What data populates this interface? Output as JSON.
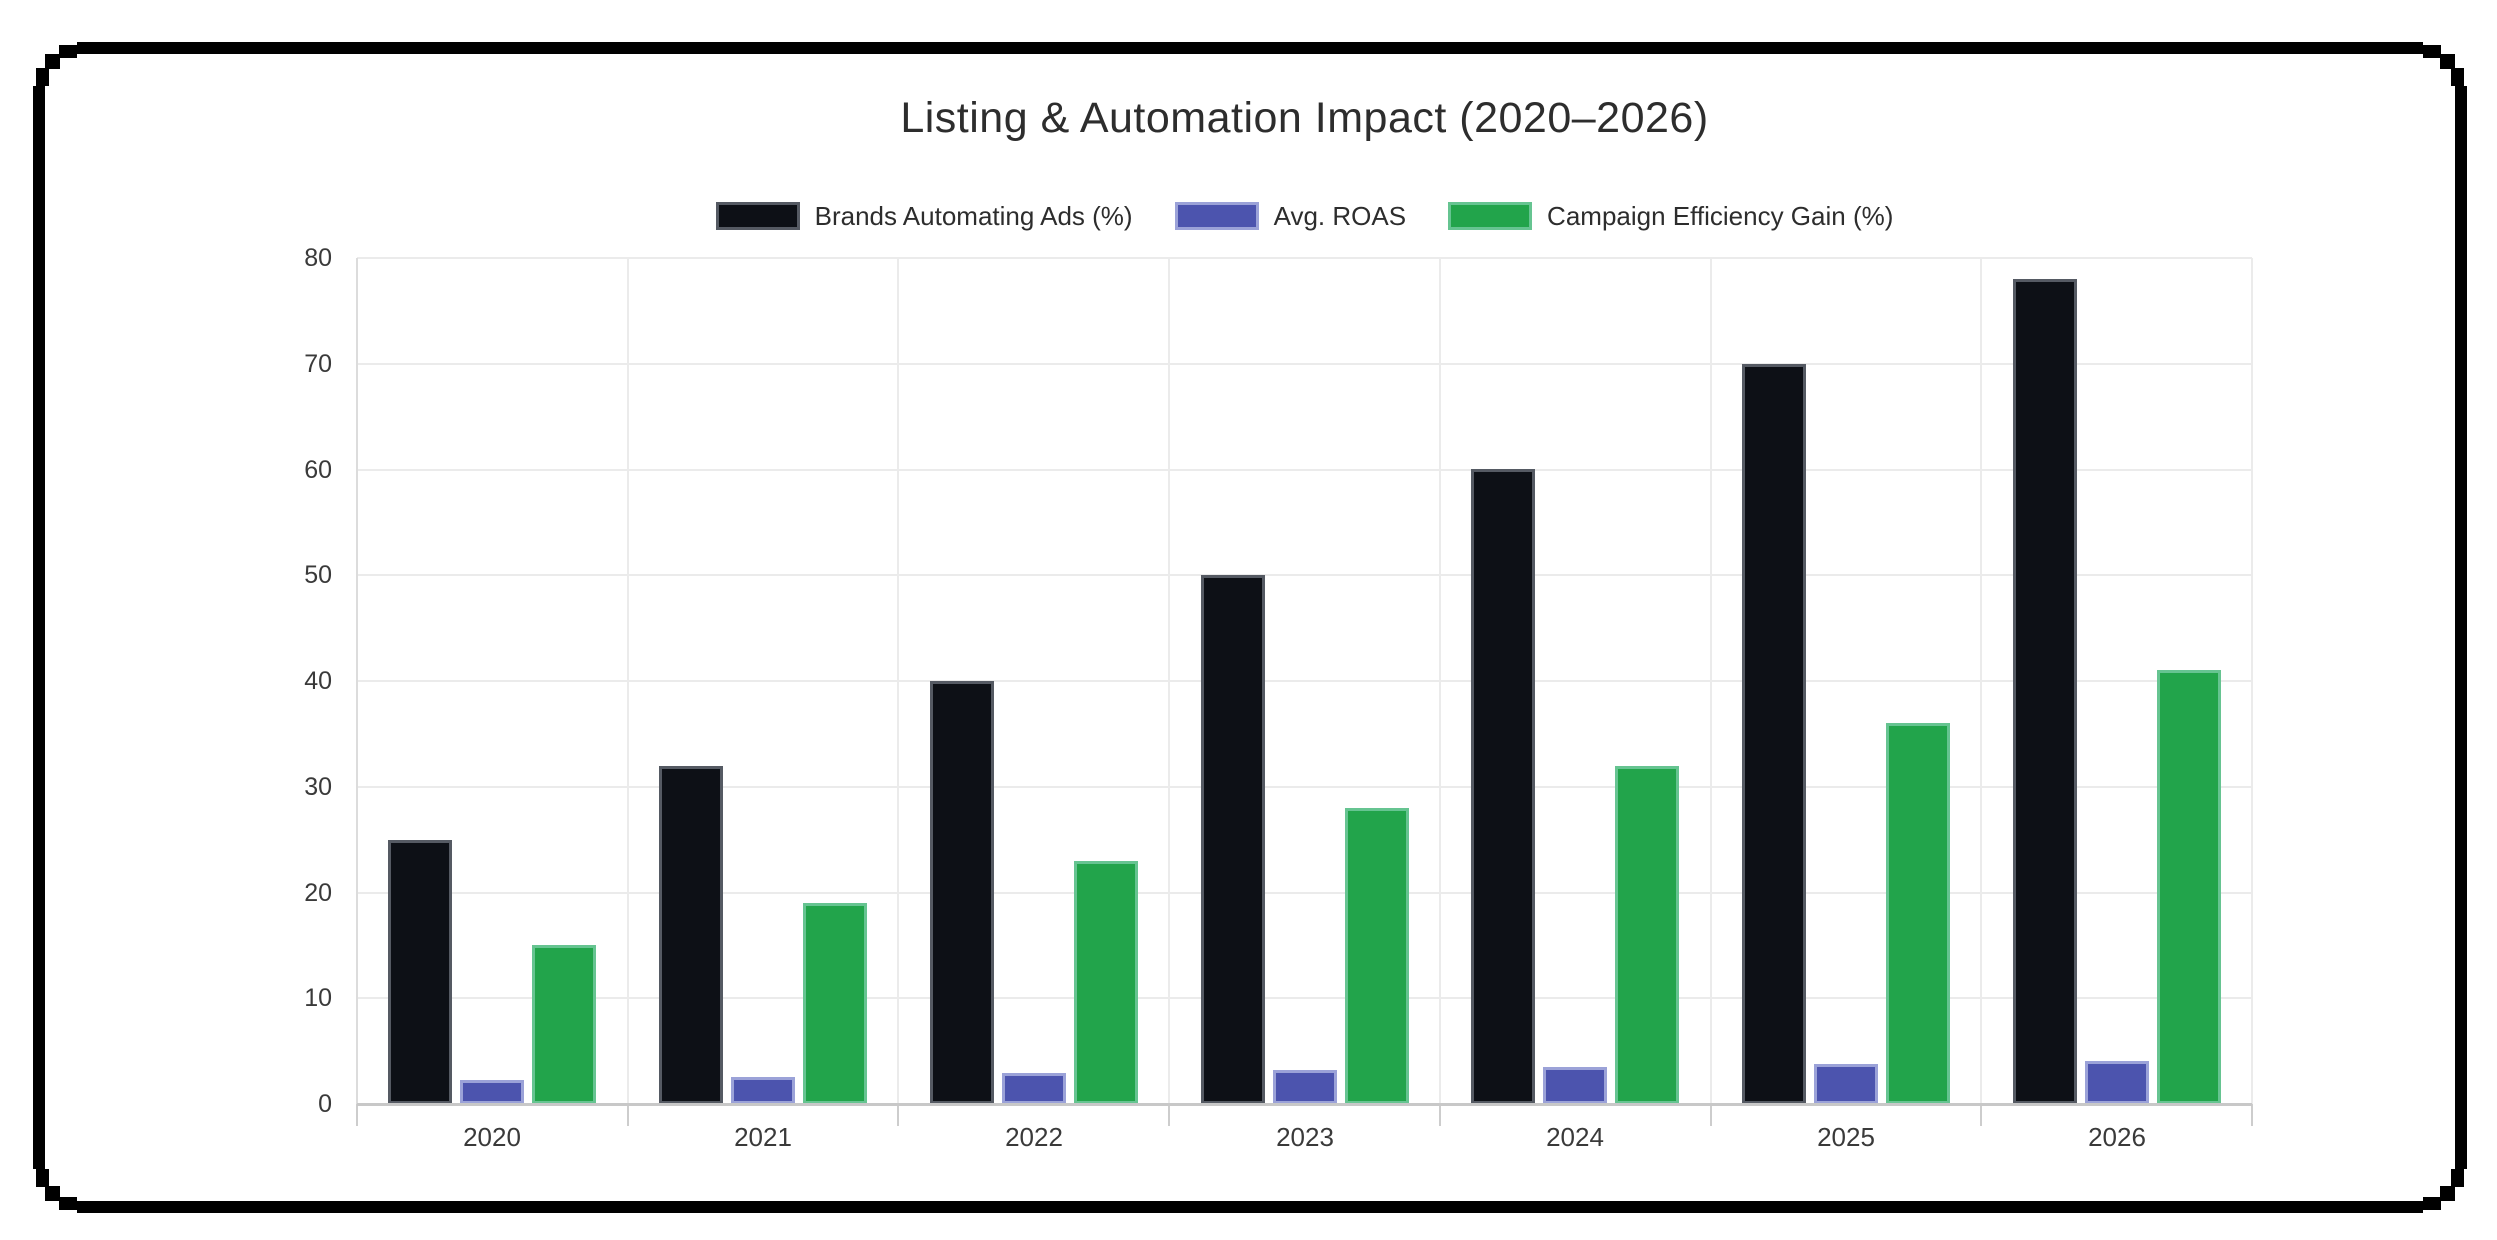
{
  "title": "Listing & Automation Impact (2020–2026)",
  "chart_data": {
    "type": "bar",
    "title": "Listing & Automation Impact (2020–2026)",
    "categories": [
      "2020",
      "2021",
      "2022",
      "2023",
      "2024",
      "2025",
      "2026"
    ],
    "series": [
      {
        "name": "Brands Automating Ads (%)",
        "color": "#0d1016",
        "border_color": "#555a63",
        "values": [
          25,
          32,
          40,
          50,
          60,
          70,
          78
        ]
      },
      {
        "name": "Avg. ROAS",
        "color": "#4c54ae",
        "border_color": "#9ba2d8",
        "values": [
          2.3,
          2.6,
          2.9,
          3.2,
          3.5,
          3.8,
          4.1
        ]
      },
      {
        "name": "Campaign Efficiency Gain (%)",
        "color": "#22a44b",
        "border_color": "#66c491",
        "values": [
          15,
          19,
          23,
          28,
          32,
          36,
          41
        ]
      }
    ],
    "xlabel": "",
    "ylabel": "",
    "ylim": [
      0,
      80
    ],
    "yticks": [
      0,
      10,
      20,
      30,
      40,
      50,
      60,
      70,
      80
    ],
    "grid": true,
    "legend_position": "top",
    "background": "#ffffff",
    "frame_color": "#000000",
    "text_color": "#2d2d2d"
  }
}
